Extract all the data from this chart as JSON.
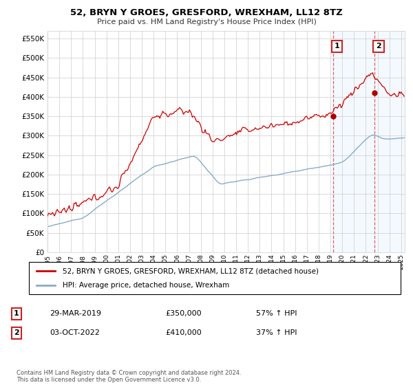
{
  "title": "52, BRYN Y GROES, GRESFORD, WREXHAM, LL12 8TZ",
  "subtitle": "Price paid vs. HM Land Registry's House Price Index (HPI)",
  "legend_line1": "52, BRYN Y GROES, GRESFORD, WREXHAM, LL12 8TZ (detached house)",
  "legend_line2": "HPI: Average price, detached house, Wrexham",
  "annotation1_date": "29-MAR-2019",
  "annotation1_price": "£350,000",
  "annotation1_hpi": "57% ↑ HPI",
  "annotation2_date": "03-OCT-2022",
  "annotation2_price": "£410,000",
  "annotation2_hpi": "37% ↑ HPI",
  "footer": "Contains HM Land Registry data © Crown copyright and database right 2024.\nThis data is licensed under the Open Government Licence v3.0.",
  "house_color": "#cc0000",
  "hpi_color": "#88aacc",
  "shaded_color": "#ddeeff",
  "vline_color": "#dd4444",
  "marker_color": "#aa0000",
  "ylim_max": 570000,
  "yticks": [
    0,
    50000,
    100000,
    150000,
    200000,
    250000,
    300000,
    350000,
    400000,
    450000,
    500000,
    550000
  ],
  "sale1_x": 2019.22,
  "sale1_y": 350000,
  "sale2_x": 2022.75,
  "sale2_y": 410000,
  "xmin": 1995,
  "xmax": 2025.3
}
